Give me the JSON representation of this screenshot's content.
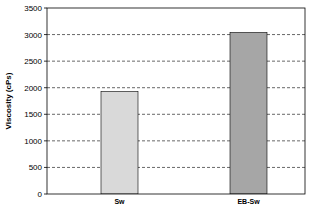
{
  "chart_data": {
    "type": "bar",
    "y_label": "Viscosity (cPs)",
    "categories": [
      "Sw",
      "EB-Sw"
    ],
    "values": [
      1930,
      3040
    ],
    "colors": [
      "#d9d9d9",
      "#a6a6a6"
    ],
    "ylim": [
      0,
      3500
    ],
    "yticks": [
      0,
      500,
      1000,
      1500,
      2000,
      2500,
      3000,
      3500
    ],
    "grid": true
  }
}
